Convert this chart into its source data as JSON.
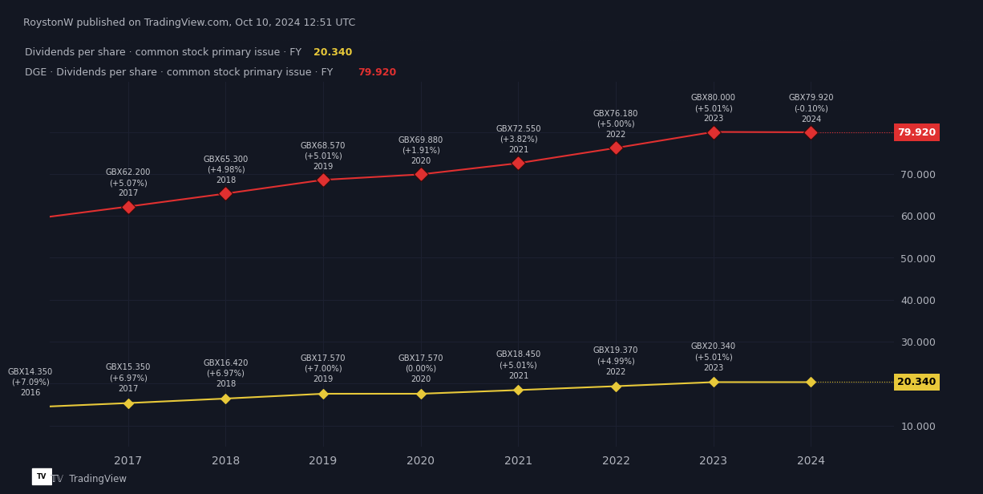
{
  "bg_color": "#131722",
  "grid_color": "#1c2030",
  "text_color": "#b2b5be",
  "title_text": "RoystonW published on TradingView.com, Oct 10, 2024 12:51 UTC",
  "legend_line1": "Dividends per share · common stock primary issue · FY",
  "legend_line1_value": "20.340",
  "legend_line2": "DGE · Dividends per share · common stock primary issue · FY",
  "legend_line2_value": "79.920",
  "lge_color": "#e8c93a",
  "dge_color": "#e03030",
  "ylim": [
    5,
    92
  ],
  "yticks": [
    10.0,
    20.0,
    30.0,
    40.0,
    50.0,
    60.0,
    70.0,
    80.0
  ],
  "xlim": [
    2016.2,
    2024.85
  ],
  "xticks": [
    2017,
    2018,
    2019,
    2020,
    2021,
    2022,
    2023,
    2024
  ],
  "lge_years": [
    2016,
    2017,
    2018,
    2019,
    2020,
    2021,
    2022,
    2023,
    2024
  ],
  "lge_values": [
    14.35,
    15.35,
    16.42,
    17.57,
    17.57,
    18.45,
    19.37,
    20.34,
    20.34
  ],
  "lge_labels": [
    "GBX14.350\n(+7.09%)\n2016",
    "GBX15.350\n(+6.97%)\n2017",
    "GBX16.420\n(+6.97%)\n2018",
    "GBX17.570\n(+7.00%)\n2019",
    "GBX17.570\n(0.00%)\n2020",
    "GBX18.450\n(+5.01%)\n2021",
    "GBX19.370\n(+4.99%)\n2022",
    "GBX20.340\n(+5.01%)\n2023",
    ""
  ],
  "dge_years": [
    2016,
    2017,
    2018,
    2019,
    2020,
    2021,
    2022,
    2023,
    2024
  ],
  "dge_values": [
    59.2,
    62.2,
    65.3,
    68.57,
    69.88,
    72.55,
    76.18,
    80.0,
    79.92
  ],
  "dge_labels": [
    "",
    "GBX62.200\n(+5.07%)\n2017",
    "GBX65.300\n(+4.98%)\n2018",
    "GBX68.570\n(+5.01%)\n2019",
    "GBX69.880\n(+1.91%)\n2020",
    "GBX72.550\n(+3.82%)\n2021",
    "GBX76.180\n(+5.00%)\n2022",
    "GBX80.000\n(+5.01%)\n2023",
    "GBX79.920\n(-0.10%)\n2024"
  ],
  "tv_logo_color": "#b2b5be",
  "border_color": "#2a2e39"
}
